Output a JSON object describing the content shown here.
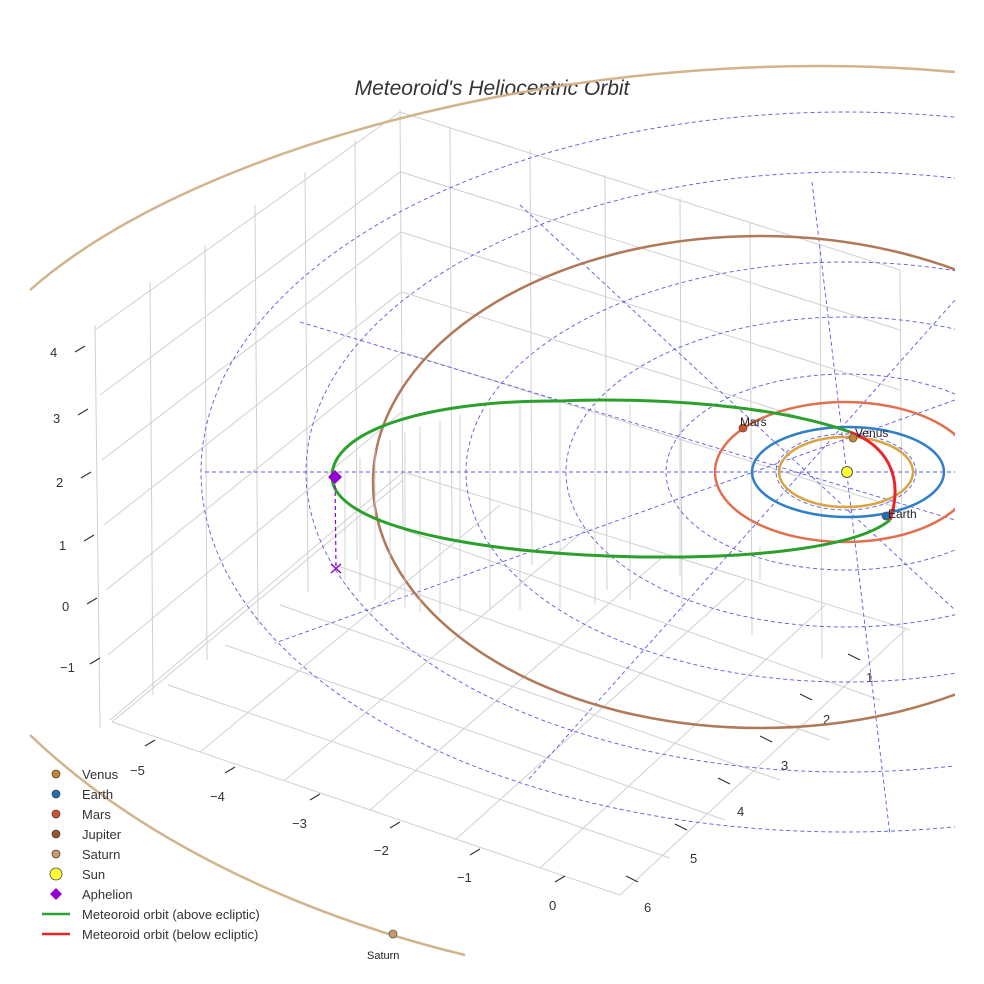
{
  "chart_data": {
    "type": "scatter3d",
    "title": "Meteoroid's Heliocentric Orbit",
    "axes": {
      "x": {
        "tick_labels": [
          "−5",
          "−4",
          "−3",
          "−2",
          "−1",
          "0"
        ]
      },
      "y": {
        "tick_labels": [
          "1",
          "2",
          "3",
          "4",
          "5",
          "6"
        ]
      },
      "z": {
        "tick_labels": [
          "4",
          "3",
          "2",
          "1",
          "0",
          "−1"
        ]
      }
    },
    "planets": [
      {
        "name": "Venus",
        "color": "#c8842a",
        "label": "Venus"
      },
      {
        "name": "Earth",
        "color": "#1f6fb4",
        "label": "Earth"
      },
      {
        "name": "Mars",
        "color": "#d2502a",
        "label": "Mars"
      },
      {
        "name": "Jupiter",
        "color": "#a0522d",
        "label": ""
      },
      {
        "name": "Saturn",
        "color": "#c99a6b",
        "label": "Saturn"
      }
    ],
    "orbits": [
      {
        "name": "Venus",
        "color": "#d9a441"
      },
      {
        "name": "Earth",
        "color": "#2f7fc8"
      },
      {
        "name": "Mars",
        "color": "#e07050"
      },
      {
        "name": "Jupiter",
        "color": "#b07a5a"
      },
      {
        "name": "Saturn",
        "color": "#d2b48c"
      }
    ],
    "sun": {
      "name": "Sun",
      "color": "#ffff33"
    },
    "aphelion": {
      "name": "Aphelion",
      "color": "#9400d3"
    },
    "meteoroid": {
      "above": {
        "name": "Meteoroid orbit (above ecliptic)",
        "color": "#2ca02c"
      },
      "below": {
        "name": "Meteoroid orbit (below ecliptic)",
        "color": "#e8262a"
      }
    },
    "legend": {
      "position": "bottom-left",
      "entries": [
        {
          "label": "Venus",
          "symbol": "circle",
          "color": "#c8842a"
        },
        {
          "label": "Earth",
          "symbol": "circle",
          "color": "#1f6fb4"
        },
        {
          "label": "Mars",
          "symbol": "circle",
          "color": "#d2502a"
        },
        {
          "label": "Jupiter",
          "symbol": "circle",
          "color": "#a0522d"
        },
        {
          "label": "Saturn",
          "symbol": "circle",
          "color": "#c99a6b"
        },
        {
          "label": "Sun",
          "symbol": "circle-large",
          "color": "#ffff33"
        },
        {
          "label": "Aphelion",
          "symbol": "diamond",
          "color": "#9400d3"
        },
        {
          "label": "Meteoroid orbit (above ecliptic)",
          "symbol": "line",
          "color": "#2ca02c"
        },
        {
          "label": "Meteoroid orbit (below ecliptic)",
          "symbol": "line",
          "color": "#e8262a"
        }
      ]
    },
    "grid": true
  }
}
